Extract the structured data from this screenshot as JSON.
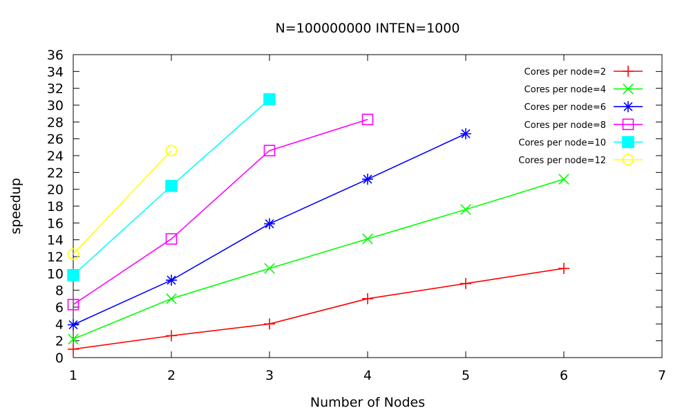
{
  "chart_data": {
    "type": "line",
    "title": "N=100000000 INTEN=1000",
    "xlabel": "Number of Nodes",
    "ylabel": "speedup",
    "xlim": [
      1,
      7
    ],
    "ylim": [
      0,
      36
    ],
    "x_ticks": [
      1,
      2,
      3,
      4,
      5,
      6,
      7
    ],
    "y_ticks": [
      0,
      2,
      4,
      6,
      8,
      10,
      12,
      14,
      16,
      18,
      20,
      22,
      24,
      26,
      28,
      30,
      32,
      34,
      36
    ],
    "grid": false,
    "legend_position": "top-right",
    "series": [
      {
        "name": "Cores per node=2",
        "color": "#ff0000",
        "marker": "plus",
        "x": [
          1,
          2,
          3,
          4,
          5,
          6
        ],
        "y": [
          1.0,
          2.6,
          4.0,
          7.0,
          8.8,
          10.6
        ]
      },
      {
        "name": "Cores per node=4",
        "color": "#00ff00",
        "marker": "cross",
        "x": [
          1,
          2,
          3,
          4,
          5,
          6
        ],
        "y": [
          2.2,
          7.0,
          10.6,
          14.1,
          17.6,
          21.2
        ]
      },
      {
        "name": "Cores per node=6",
        "color": "#0000ff",
        "marker": "star",
        "x": [
          1,
          2,
          3,
          4,
          5
        ],
        "y": [
          3.9,
          9.2,
          15.9,
          21.2,
          26.6
        ]
      },
      {
        "name": "Cores per node=8",
        "color": "#ff00ff",
        "marker": "square-open",
        "x": [
          1,
          2,
          3,
          4
        ],
        "y": [
          6.3,
          14.1,
          24.6,
          28.3
        ]
      },
      {
        "name": "Cores per node=10",
        "color": "#00ffff",
        "marker": "square-filled",
        "x": [
          1,
          2,
          3
        ],
        "y": [
          9.8,
          20.4,
          30.7
        ]
      },
      {
        "name": "Cores per node=12",
        "color": "#ffff00",
        "marker": "circle-open",
        "x": [
          1,
          2
        ],
        "y": [
          12.3,
          24.6
        ]
      }
    ]
  }
}
